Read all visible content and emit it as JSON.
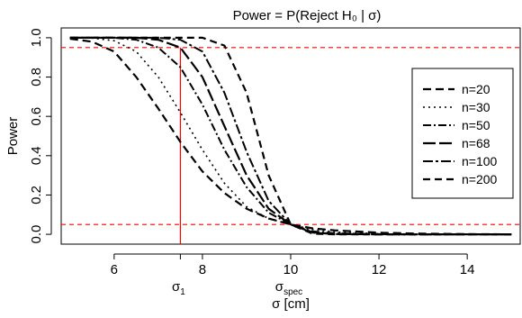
{
  "chart_data": {
    "type": "line",
    "title": "Power = P(Reject H₀ | σ)",
    "xlabel": "σ [cm]",
    "ylabel": "Power",
    "xlim": [
      4.8,
      15.2
    ],
    "ylim": [
      -0.05,
      1.05
    ],
    "x_ticks": [
      6,
      8,
      10,
      12,
      14
    ],
    "x_tick_labels": [
      "6",
      "8",
      "10",
      "12",
      "14"
    ],
    "y_ticks": [
      0.0,
      0.2,
      0.4,
      0.6,
      0.8,
      1.0
    ],
    "y_tick_labels": [
      "0.0",
      "0.2",
      "0.4",
      "0.6",
      "0.8",
      "1.0"
    ],
    "sigma1": {
      "value": 7.5,
      "label": "σ",
      "sub": "1"
    },
    "sigma_spec": {
      "value": 10,
      "label": "σ",
      "sub": "spec"
    },
    "reference_lines": {
      "upper": 0.95,
      "lower": 0.05
    },
    "legend_position": "right",
    "grid": false,
    "series": [
      {
        "name": "n=20",
        "x": [
          5,
          5.5,
          6,
          6.5,
          7,
          7.5,
          8,
          8.5,
          9,
          9.5,
          10,
          10.5,
          11,
          12,
          13,
          14,
          15
        ],
        "y": [
          0.995,
          0.98,
          0.93,
          0.8,
          0.64,
          0.47,
          0.32,
          0.21,
          0.13,
          0.08,
          0.05,
          0.03,
          0.02,
          0.008,
          0.003,
          0.001,
          0.0
        ]
      },
      {
        "name": "n=30",
        "x": [
          5,
          5.5,
          6,
          6.5,
          7,
          7.5,
          8,
          8.5,
          9,
          9.5,
          10,
          10.5,
          11,
          12,
          13,
          14,
          15
        ],
        "y": [
          1.0,
          0.998,
          0.985,
          0.93,
          0.8,
          0.62,
          0.43,
          0.26,
          0.14,
          0.08,
          0.05,
          0.025,
          0.012,
          0.003,
          0.001,
          0.0,
          0.0
        ]
      },
      {
        "name": "n=50",
        "x": [
          5,
          5.5,
          6,
          6.5,
          7,
          7.5,
          8,
          8.5,
          9,
          9.5,
          10,
          10.5,
          11,
          12,
          13,
          14,
          15
        ],
        "y": [
          1.0,
          1.0,
          1.0,
          0.99,
          0.95,
          0.85,
          0.66,
          0.43,
          0.24,
          0.11,
          0.05,
          0.015,
          0.005,
          0.001,
          0.0,
          0.0,
          0.0
        ]
      },
      {
        "name": "n=68",
        "x": [
          5,
          5.5,
          6,
          6.5,
          7,
          7.5,
          8,
          8.5,
          9,
          9.5,
          10,
          10.5,
          11,
          12,
          13,
          14,
          15
        ],
        "y": [
          1.0,
          1.0,
          1.0,
          1.0,
          0.99,
          0.95,
          0.8,
          0.55,
          0.3,
          0.13,
          0.05,
          0.01,
          0.002,
          0.0,
          0.0,
          0.0,
          0.0
        ]
      },
      {
        "name": "n=100",
        "x": [
          5,
          5.5,
          6,
          6.5,
          7,
          7.5,
          8,
          8.5,
          9,
          9.5,
          10,
          10.5,
          11,
          12,
          13,
          14,
          15
        ],
        "y": [
          1.0,
          1.0,
          1.0,
          1.0,
          1.0,
          0.99,
          0.93,
          0.72,
          0.42,
          0.17,
          0.05,
          0.008,
          0.001,
          0.0,
          0.0,
          0.0,
          0.0
        ]
      },
      {
        "name": "n=200",
        "x": [
          5,
          5.5,
          6,
          6.5,
          7,
          7.5,
          8,
          8.5,
          9,
          9.5,
          10,
          10.5,
          11,
          12,
          13,
          14,
          15
        ],
        "y": [
          1.0,
          1.0,
          1.0,
          1.0,
          1.0,
          1.0,
          1.0,
          0.96,
          0.72,
          0.3,
          0.05,
          0.003,
          0.0,
          0.0,
          0.0,
          0.0,
          0.0
        ]
      }
    ],
    "colors": {
      "series": "#000000",
      "reference": "#ff0000"
    }
  }
}
